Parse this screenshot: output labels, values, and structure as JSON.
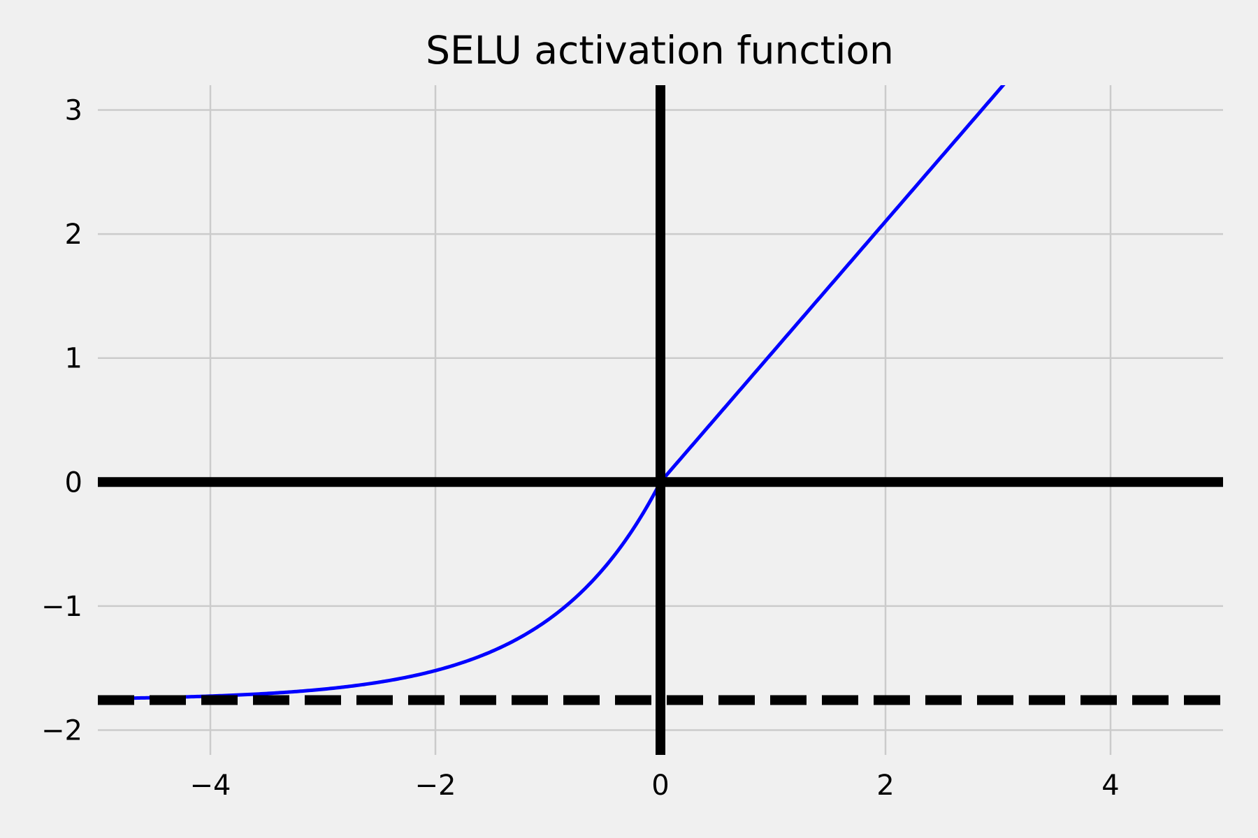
{
  "chart_data": {
    "type": "line",
    "title": "SELU activation function",
    "xlabel": "",
    "ylabel": "",
    "xlim": [
      -5,
      5
    ],
    "ylim": [
      -2.2,
      3.2
    ],
    "grid": true,
    "x_ticks": [
      -4,
      -2,
      0,
      2,
      4
    ],
    "x_tick_labels": [
      "−4",
      "−2",
      "0",
      "2",
      "4"
    ],
    "y_ticks": [
      -2,
      -1,
      0,
      1,
      2,
      3
    ],
    "y_tick_labels": [
      "−2",
      "−1",
      "0",
      "1",
      "2",
      "3"
    ],
    "series": [
      {
        "function": "selu",
        "scale": 1.0507,
        "alpha": 1.67326,
        "x_range": [
          -5,
          5
        ],
        "color": "#0000ff"
      }
    ],
    "reference_lines": [
      {
        "orientation": "horizontal",
        "value": 0,
        "style": "solid",
        "color": "#000000"
      },
      {
        "orientation": "vertical",
        "value": 0,
        "style": "solid",
        "color": "#000000"
      },
      {
        "orientation": "horizontal",
        "value": -1.7581,
        "style": "dashed",
        "color": "#000000"
      }
    ]
  }
}
